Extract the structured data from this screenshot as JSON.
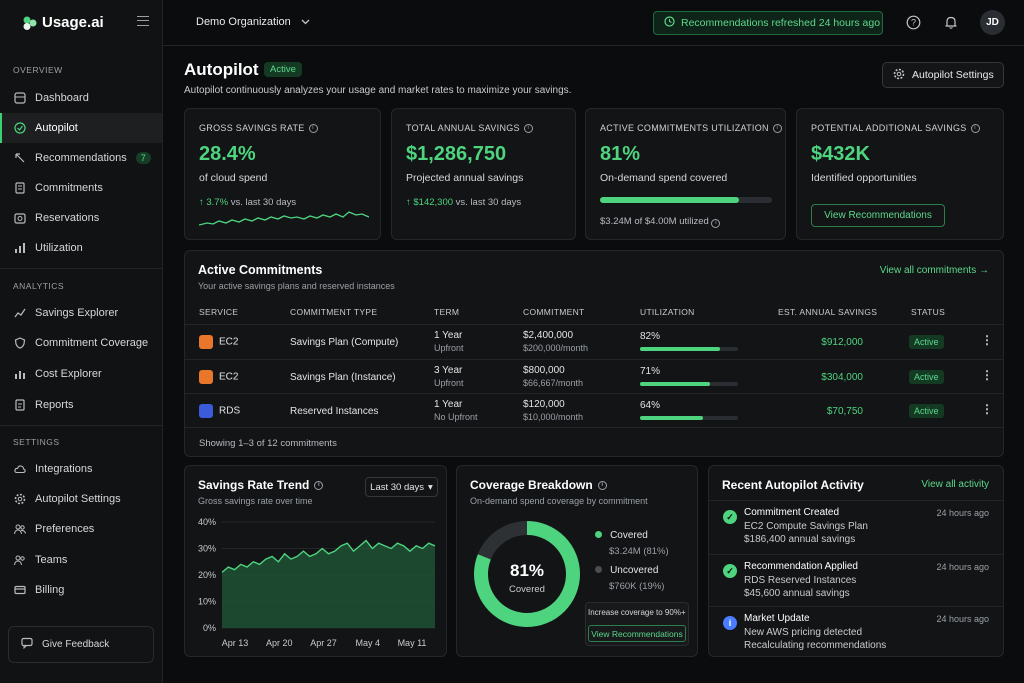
{
  "app": {
    "logo": "Usage.ai"
  },
  "sidebar": {
    "sections": [
      {
        "title": "OVERVIEW"
      },
      {
        "title": "ANALYTICS"
      },
      {
        "title": "SETTINGS"
      }
    ],
    "overview": [
      "Dashboard",
      "Autopilot",
      "Recommendations",
      "Commitments",
      "Reservations",
      "Utilization"
    ],
    "recommendations_badge": "7",
    "analytics": [
      "Savings Explorer",
      "Commitment Coverage",
      "Cost Explorer",
      "Reports"
    ],
    "settings": [
      "Integrations",
      "Autopilot Settings",
      "Preferences",
      "Teams",
      "Billing"
    ],
    "feedback": "Give Feedback"
  },
  "topbar": {
    "org": "Demo Organization",
    "refresh": "Recommendations refreshed 24 hours ago",
    "avatar": "JD"
  },
  "page": {
    "title": "Autopilot",
    "status": "Active",
    "subtitle": "Autopilot continuously analyzes your usage and market rates to maximize your savings.",
    "settings_button": "Autopilot Settings"
  },
  "kpis": {
    "gross": {
      "label": "GROSS SAVINGS RATE",
      "value": "28.4%",
      "sub": "of cloud spend",
      "delta": "↑ 3.7%",
      "delta_suffix": "vs. last 30 days"
    },
    "annual": {
      "label": "TOTAL ANNUAL SAVINGS",
      "value": "$1,286,750",
      "sub": "Projected annual savings",
      "delta": "↑ $142,300",
      "delta_suffix": "vs. last 30 days"
    },
    "util": {
      "label": "ACTIVE COMMITMENTS UTILIZATION",
      "value": "81%",
      "sub": "On-demand spend covered",
      "fill": 0.81,
      "foot": "$3.24M of $4.00M utilized"
    },
    "potential": {
      "label": "POTENTIAL ADDITIONAL SAVINGS",
      "value": "$432K",
      "sub": "Identified opportunities",
      "button": "View Recommendations"
    }
  },
  "commitments": {
    "title": "Active Commitments",
    "subtitle": "Your active savings plans and reserved instances",
    "link": "View all commitments →",
    "headers": [
      "SERVICE",
      "COMMITMENT TYPE",
      "TERM",
      "COMMITMENT",
      "UTILIZATION",
      "EST. ANNUAL SAVINGS",
      "STATUS"
    ],
    "rows": [
      {
        "service": "EC2",
        "type": "Savings Plan (Compute)",
        "term": "1 Year",
        "term2": "Upfront",
        "commit": "$2,400,000",
        "commit2": "$200,000/month",
        "util": "82%",
        "util_value": 0.82,
        "savings": "$912,000",
        "status": "Active",
        "color": "#e8762b"
      },
      {
        "service": "EC2",
        "type": "Savings Plan (Instance)",
        "term": "3 Year",
        "term2": "Upfront",
        "commit": "$800,000",
        "commit2": "$66,667/month",
        "util": "71%",
        "util_value": 0.71,
        "savings": "$304,000",
        "status": "Active",
        "color": "#e8762b"
      },
      {
        "service": "RDS",
        "type": "Reserved Instances",
        "term": "1 Year",
        "term2": "No Upfront",
        "commit": "$120,000",
        "commit2": "$10,000/month",
        "util": "64%",
        "util_value": 0.64,
        "savings": "$70,750",
        "status": "Active",
        "color": "#3b5bdb"
      }
    ],
    "footer": "Showing 1–3 of 12 commitments"
  },
  "trend": {
    "title": "Savings Rate Trend",
    "subtitle": "Gross savings rate over time",
    "range": "Last 30 days",
    "chart_data": {
      "type": "area",
      "y_ticks": [
        "40%",
        "30%",
        "20%",
        "10%",
        "0%"
      ],
      "ylim": [
        0,
        40
      ],
      "x_ticks": [
        "Apr 13",
        "Apr 20",
        "Apr 27",
        "May 4",
        "May 11"
      ],
      "values": [
        21,
        23,
        22,
        24,
        23,
        25,
        24,
        26,
        27,
        25,
        28,
        26,
        27,
        29,
        27,
        28,
        30,
        28,
        29,
        31,
        32,
        29,
        31,
        33,
        30,
        32,
        31,
        30,
        32,
        31,
        29,
        31,
        30,
        32,
        31
      ]
    }
  },
  "coverage": {
    "title": "Coverage Breakdown",
    "subtitle": "On-demand spend coverage by commitment",
    "center_value": "81%",
    "center_label": "Covered",
    "chart_data": {
      "type": "pie",
      "values": [
        81,
        19
      ],
      "labels": [
        "Covered",
        "Uncovered"
      ]
    },
    "legend": [
      {
        "label": "Covered",
        "value": "$3.24M (81%)",
        "color": "#4ed47f"
      },
      {
        "label": "Uncovered",
        "value": "$760K (19%)",
        "color": "#3a3d41"
      }
    ],
    "callout": "Increase coverage to 90%+",
    "callout_button": "View Recommendations"
  },
  "activity": {
    "title": "Recent Autopilot Activity",
    "link": "View all activity",
    "items": [
      {
        "title": "Commitment Created",
        "line1": "EC2 Compute Savings Plan",
        "line2": "$186,400 annual savings",
        "time": "24 hours ago",
        "icon": "check-icon",
        "color": "#4ed47f"
      },
      {
        "title": "Recommendation Applied",
        "line1": "RDS Reserved Instances",
        "line2": "$45,600 annual savings",
        "time": "24 hours ago",
        "icon": "check-icon",
        "color": "#4ed47f"
      },
      {
        "title": "Market Update",
        "line1": "New AWS pricing detected",
        "line2": "Recalculating recommendations",
        "time": "24 hours ago",
        "icon": "info-icon",
        "color": "#4a7cff"
      }
    ]
  }
}
